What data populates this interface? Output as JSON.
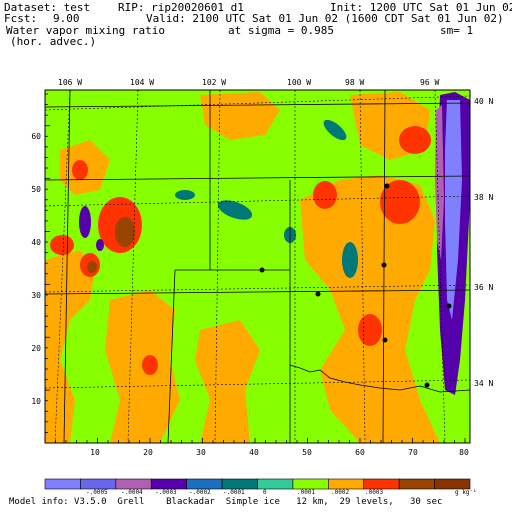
{
  "header": {
    "dataset": "Dataset: test",
    "rip": "RIP: rip20020601 d1",
    "init": "Init: 1200 UTC Sat 01 Jun 02",
    "fcst_label": "Fcst:",
    "fcst_value": "9.00",
    "valid": "Valid: 2100 UTC Sat 01 Jun 02 (1600 CDT Sat 01 Jun 02)",
    "field1": "Water vapor mixing ratio",
    "field2": "(hor. advec.)",
    "sigma": "at sigma = 0.985",
    "sm": "sm= 1"
  },
  "axes": {
    "lon_labels": [
      "106 W",
      "104 W",
      "102 W",
      "100 W",
      "98 W",
      "96 W"
    ],
    "lat_labels": [
      "40 N",
      "38 N",
      "36 N",
      "34 N"
    ],
    "x_ticks": [
      "10",
      "20",
      "30",
      "40",
      "50",
      "60",
      "70",
      "80"
    ],
    "y_ticks": [
      "60",
      "50",
      "40",
      "30",
      "20",
      "10"
    ]
  },
  "colorbar": {
    "colors": [
      "#8080ff",
      "#6666ee",
      "#b060b0",
      "#5500aa",
      "#1b6ec0",
      "#007878",
      "#33cc99",
      "#88ff00",
      "#ffaa00",
      "#ff3300",
      "#994400",
      "#883300"
    ],
    "labels": [
      "-.0005",
      "-.0004",
      "-.0003",
      "-.0002",
      "-.0001",
      "0",
      ".0001",
      ".0002",
      ".0003"
    ],
    "unit": "g kg⁻¹"
  },
  "footer": "Model info: V3.5.0  Grell    Blackadar  Simple ice   12 km,  29 levels,   30 sec",
  "field_colors": {
    "green": "#88ff00",
    "orange": "#ffaa00",
    "red": "#ff3300",
    "brown": "#994400",
    "teal": "#007878",
    "blue": "#1b6ec0",
    "purple": "#5500aa",
    "lavender": "#8080ff",
    "mauve": "#b060b0"
  }
}
